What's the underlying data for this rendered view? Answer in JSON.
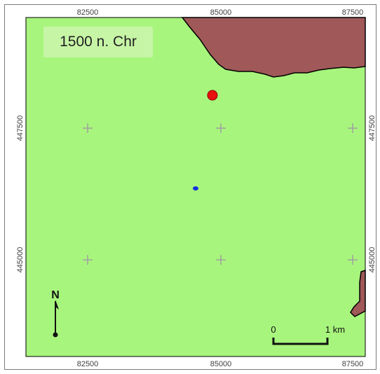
{
  "map": {
    "title": "1500 n. Chr",
    "colors": {
      "land": "#a8f57d",
      "water_body": "#a05858",
      "water_outline": "#000000",
      "grid_cross": "#a0a0a0",
      "red_marker": "#e81010",
      "blue_marker": "#1030e0"
    },
    "x_ticks_top": [
      "82500",
      "85000",
      "87500"
    ],
    "x_ticks_bottom": [
      "82500",
      "85000",
      "87500"
    ],
    "y_ticks_left": [
      "447500",
      "445000"
    ],
    "y_ticks_right": [
      "447500",
      "445000"
    ],
    "scale_bar": {
      "start_label": "0",
      "end_label": "1 km"
    },
    "north_arrow": {
      "label": "N"
    },
    "markers": [
      {
        "name": "red-point-marker",
        "color": "#e81010"
      },
      {
        "name": "blue-point-marker",
        "color": "#1030e0"
      }
    ]
  }
}
